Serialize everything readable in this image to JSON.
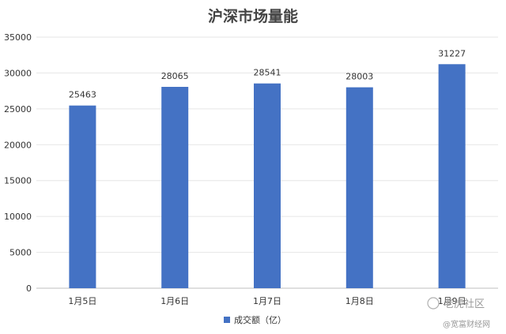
{
  "watermark": {
    "line1": "老虎社区",
    "line2": "@宽富财经网"
  },
  "chart_data": {
    "type": "bar",
    "title": "沪深市场量能",
    "categories": [
      "1月5日",
      "1月6日",
      "1月7日",
      "1月8日",
      "1月9日"
    ],
    "series": [
      {
        "name": "成交额（亿）",
        "values": [
          25463,
          28065,
          28541,
          28003,
          31227
        ],
        "color": "#4472C4"
      }
    ],
    "ylim": [
      0,
      35000
    ],
    "yticks": [
      0,
      5000,
      10000,
      15000,
      20000,
      25000,
      30000,
      35000
    ],
    "grid": true,
    "legend": "bottom",
    "data_labels": true
  }
}
